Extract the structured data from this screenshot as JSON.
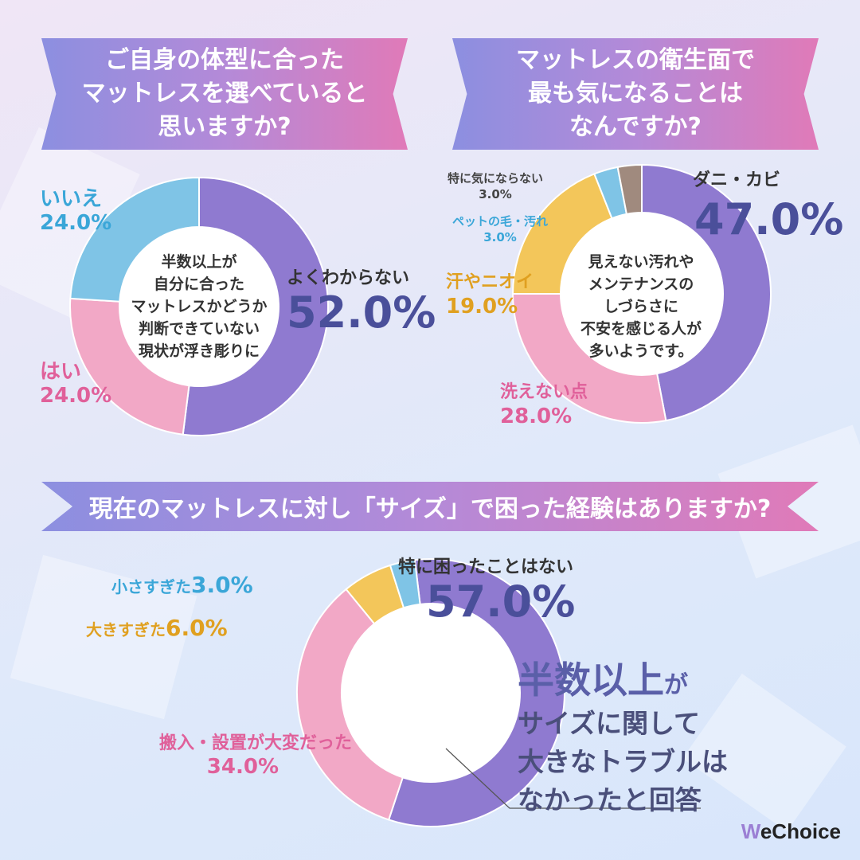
{
  "q1": {
    "title_lines": [
      "ご自身の体型に合った",
      "マットレスを選べていると",
      "思いますか?"
    ],
    "center_lines": [
      "半数以上が",
      "自分に合った",
      "マットレスかどうか",
      "判断できていない",
      "現状が浮き彫りに"
    ]
  },
  "q2": {
    "title_lines": [
      "マットレスの衛生面で",
      "最も気になることは",
      "なんですか?"
    ],
    "center_lines": [
      "見えない汚れや",
      "メンテナンスの",
      "しづらさに",
      "不安を感じる人が",
      "多いようです。"
    ]
  },
  "q3": {
    "title": "現在のマットレスに対し「サイズ」で困った経験はありますか?",
    "note_lines": [
      {
        "em": "半数以上",
        "rest": "が"
      },
      {
        "text": "サイズに関して"
      },
      {
        "text": "大きなトラブルは"
      },
      {
        "text": "なかったと回答"
      }
    ]
  },
  "brand": {
    "w": "W",
    "rest": "eChoice"
  },
  "colors": {
    "purple": "#8f7ad0",
    "pink": "#f2a8c6",
    "blue": "#7fc4e6",
    "yellow": "#f3c65a",
    "brown": "#a08a7e",
    "navy": "#4a4f9a",
    "pinkText": "#e0609a",
    "blueText": "#3aa6d8",
    "yellowText": "#e0a020"
  },
  "chart_data": [
    {
      "type": "pie",
      "title": "ご自身の体型に合ったマットレスを選べていると思いますか?",
      "categories": [
        "よくわからない",
        "はい",
        "いいえ"
      ],
      "values": [
        52.0,
        24.0,
        24.0
      ],
      "value_labels": [
        "52.0%",
        "24.0%",
        "24.0%"
      ],
      "colors": [
        "#8f7ad0",
        "#f2a8c6",
        "#7fc4e6"
      ]
    },
    {
      "type": "pie",
      "title": "マットレスの衛生面で最も気になることはなんですか?",
      "categories": [
        "ダニ・カビ",
        "洗えない点",
        "汗やニオイ",
        "ペットの毛・汚れ",
        "特に気にならない"
      ],
      "values": [
        47.0,
        28.0,
        19.0,
        3.0,
        3.0
      ],
      "value_labels": [
        "47.0%",
        "28.0%",
        "19.0%",
        "3.0%",
        "3.0%"
      ],
      "colors": [
        "#8f7ad0",
        "#f2a8c6",
        "#f3c65a",
        "#7fc4e6",
        "#a08a7e"
      ]
    },
    {
      "type": "pie",
      "title": "現在のマットレスに対し「サイズ」で困った経験はありますか?",
      "categories": [
        "特に困ったことはない",
        "搬入・設置が大変だった",
        "大きすぎた",
        "小さすぎた"
      ],
      "values": [
        57.0,
        34.0,
        6.0,
        3.0
      ],
      "value_labels": [
        "57.0%",
        "34.0%",
        "6.0%",
        "3.0%"
      ],
      "colors": [
        "#8f7ad0",
        "#f2a8c6",
        "#f3c65a",
        "#7fc4e6"
      ]
    }
  ]
}
